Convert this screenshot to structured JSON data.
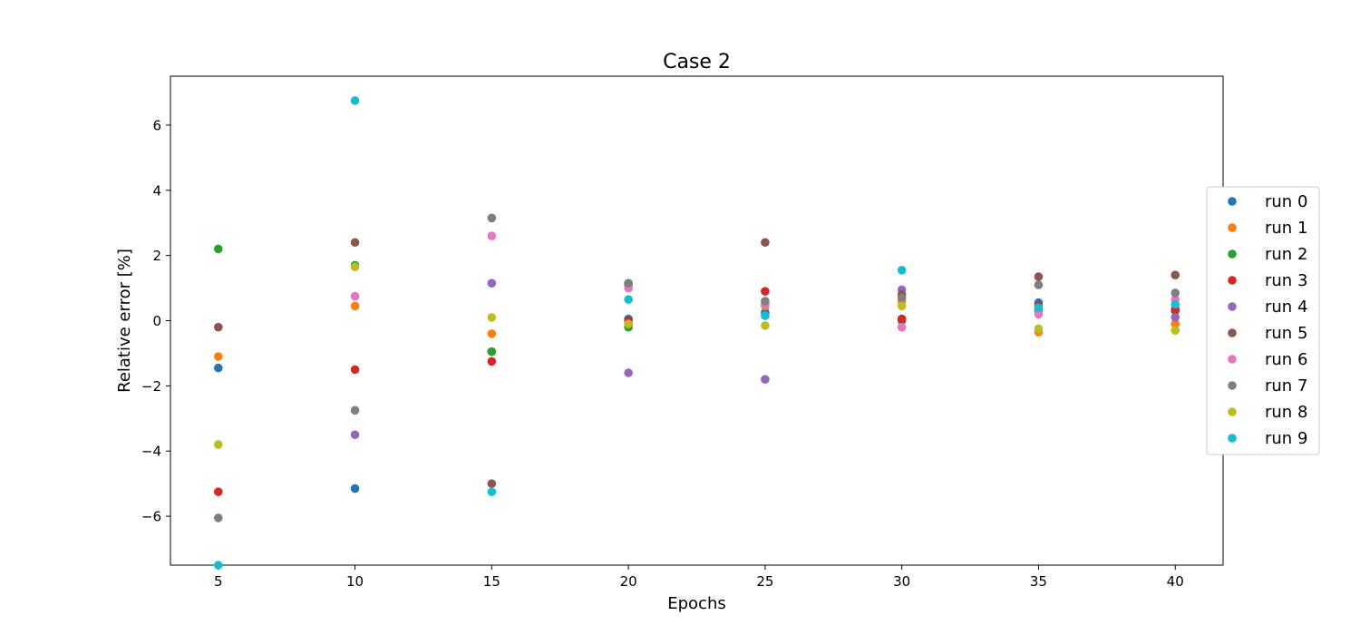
{
  "chart_data": {
    "type": "scatter",
    "title": "Case 2",
    "xlabel": "Epochs",
    "ylabel": "Relative error [%]",
    "xlim": [
      3.25,
      41.75
    ],
    "ylim": [
      -7.5,
      7.5
    ],
    "xticks": [
      5,
      10,
      15,
      20,
      25,
      30,
      35,
      40
    ],
    "yticks": [
      -6,
      -4,
      -2,
      0,
      2,
      4,
      6
    ],
    "grid": false,
    "legend_position": "right",
    "x": [
      5,
      10,
      15,
      20,
      25,
      30,
      35,
      40
    ],
    "series": [
      {
        "name": "run 0",
        "color": "#1f77b4",
        "values": [
          -1.45,
          -5.15,
          -0.95,
          0.05,
          0.25,
          0.05,
          0.55,
          0.3
        ]
      },
      {
        "name": "run 1",
        "color": "#ff7f0e",
        "values": [
          -1.1,
          0.45,
          -0.4,
          -0.1,
          0.45,
          0.6,
          -0.35,
          -0.1
        ]
      },
      {
        "name": "run 2",
        "color": "#2ca02c",
        "values": [
          2.2,
          1.7,
          -0.95,
          -0.2,
          0.5,
          0.0,
          0.35,
          0.35
        ]
      },
      {
        "name": "run 3",
        "color": "#d62728",
        "values": [
          -5.25,
          -1.5,
          -1.25,
          0.0,
          0.9,
          0.05,
          0.45,
          0.35
        ]
      },
      {
        "name": "run 4",
        "color": "#9467bd",
        "values": [
          null,
          -3.5,
          1.15,
          -1.6,
          -1.8,
          0.95,
          0.3,
          0.1
        ]
      },
      {
        "name": "run 5",
        "color": "#8c564b",
        "values": [
          -0.2,
          2.4,
          -5.0,
          1.1,
          2.4,
          0.8,
          1.35,
          1.4
        ]
      },
      {
        "name": "run 6",
        "color": "#e377c2",
        "values": [
          null,
          0.75,
          2.6,
          1.0,
          0.5,
          -0.2,
          0.2,
          0.65
        ]
      },
      {
        "name": "run 7",
        "color": "#7f7f7f",
        "values": [
          -6.05,
          -2.75,
          3.15,
          1.15,
          0.6,
          0.7,
          1.1,
          0.85
        ]
      },
      {
        "name": "run 8",
        "color": "#bcbd22",
        "values": [
          -3.8,
          1.65,
          0.1,
          -0.1,
          -0.15,
          0.45,
          -0.25,
          -0.3
        ]
      },
      {
        "name": "run 9",
        "color": "#17becf",
        "values": [
          -7.5,
          6.75,
          -5.25,
          0.65,
          0.15,
          1.55,
          0.4,
          0.5
        ]
      }
    ]
  }
}
